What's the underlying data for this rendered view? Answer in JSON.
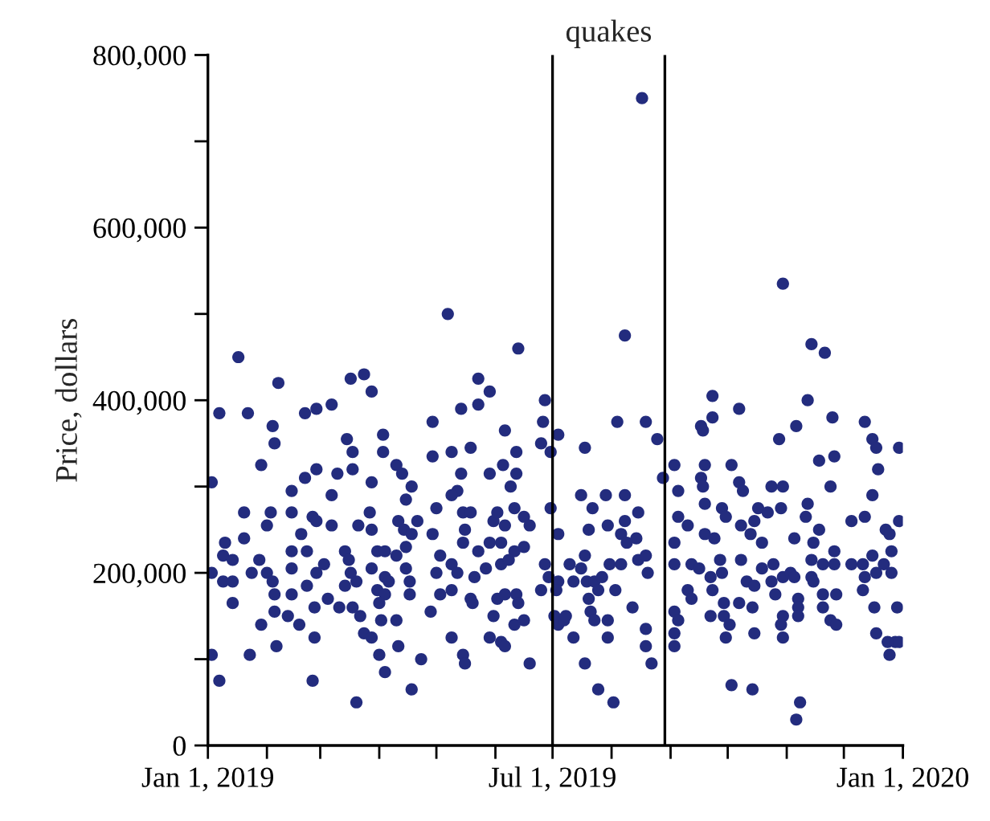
{
  "chart_data": {
    "type": "scatter",
    "ylabel": "Price, dollars",
    "xlim": [
      "2019-01-01",
      "2020-01-01"
    ],
    "xticks": [
      {
        "value": "2019-01-01",
        "label": "Jan 1, 2019"
      },
      {
        "value": "2019-02-01",
        "label": null
      },
      {
        "value": "2019-03-01",
        "label": null
      },
      {
        "value": "2019-04-01",
        "label": null
      },
      {
        "value": "2019-05-01",
        "label": null
      },
      {
        "value": "2019-06-01",
        "label": null
      },
      {
        "value": "2019-07-01",
        "label": "Jul 1, 2019"
      },
      {
        "value": "2019-08-01",
        "label": null
      },
      {
        "value": "2019-09-01",
        "label": null
      },
      {
        "value": "2019-10-01",
        "label": null
      },
      {
        "value": "2019-11-01",
        "label": null
      },
      {
        "value": "2019-12-01",
        "label": null
      },
      {
        "value": "2020-01-01",
        "label": "Jan 1, 2020"
      }
    ],
    "ylim": [
      0,
      800000
    ],
    "yticks": [
      {
        "value": 0,
        "label": "0"
      },
      {
        "value": 100000,
        "label": null
      },
      {
        "value": 200000,
        "label": "200,000"
      },
      {
        "value": 300000,
        "label": null
      },
      {
        "value": 400000,
        "label": "400,000"
      },
      {
        "value": 500000,
        "label": null
      },
      {
        "value": 600000,
        "label": "600,000"
      },
      {
        "value": 700000,
        "label": null
      },
      {
        "value": 800000,
        "label": "800,000"
      }
    ],
    "grid": false,
    "marker": "circle",
    "ref_lines": [
      {
        "axis": "x",
        "value": "2019-07-01",
        "color": "#000000"
      },
      {
        "axis": "x",
        "value": "2019-08-29",
        "color": "#000000"
      }
    ],
    "annotations": [
      "quakes"
    ],
    "series": [
      {
        "color": "#232c7e",
        "x": [
          "2019-01-17",
          "2019-02-07",
          "2019-01-07",
          "2019-01-22",
          "2019-02-21",
          "2019-02-27",
          "2019-03-07",
          "2019-03-17",
          "2019-03-24",
          "2019-03-28",
          "2019-01-03",
          "2019-02-04",
          "2019-02-05",
          "2019-01-29",
          "2019-01-20",
          "2019-01-10",
          "2019-01-09",
          "2019-01-14",
          "2019-01-03",
          "2019-01-09",
          "2019-01-14",
          "2019-01-14",
          "2019-01-20",
          "2019-01-24",
          "2019-02-01",
          "2019-02-03",
          "2019-01-28",
          "2019-02-01",
          "2019-02-04",
          "2019-02-05",
          "2019-02-05",
          "2019-01-29",
          "2019-02-06",
          "2019-01-23",
          "2019-01-03",
          "2019-01-07",
          "2019-02-14",
          "2019-02-14",
          "2019-02-14",
          "2019-02-14",
          "2019-02-14",
          "2019-02-12",
          "2019-02-21",
          "2019-02-27",
          "2019-02-19",
          "2019-02-22",
          "2019-02-25",
          "2019-02-27",
          "2019-03-07",
          "2019-03-07",
          "2019-03-03",
          "2019-02-27",
          "2019-02-22",
          "2019-03-05",
          "2019-02-26",
          "2019-02-18",
          "2019-02-26",
          "2019-02-25",
          "2019-03-10",
          "2019-03-18",
          "2019-03-15",
          "2019-03-18",
          "2019-03-28",
          "2019-03-27",
          "2019-03-21",
          "2019-03-28",
          "2019-03-14",
          "2019-03-16",
          "2019-03-17",
          "2019-03-20",
          "2019-03-14",
          "2019-03-11",
          "2019-03-18",
          "2019-03-22",
          "2019-03-24",
          "2019-03-28",
          "2019-04-01",
          "2019-04-04",
          "2019-03-20",
          "2019-04-03",
          "2019-04-03",
          "2019-04-10",
          "2019-04-13",
          "2019-04-18",
          "2019-04-15",
          "2019-04-11",
          "2019-04-14",
          "2019-04-18",
          "2019-04-21",
          "2019-03-31",
          "2019-04-04",
          "2019-04-10",
          "2019-04-15",
          "2019-03-28",
          "2019-04-04",
          "2019-04-06",
          "2019-03-31",
          "2019-04-04",
          "2019-04-01",
          "2019-04-02",
          "2019-04-10",
          "2019-04-17",
          "2019-04-17",
          "2019-04-15",
          "2019-04-11",
          "2019-04-23",
          "2019-04-18",
          "2019-04-29",
          "2019-04-29",
          "2019-05-01",
          "2019-04-29",
          "2019-05-01",
          "2019-04-28",
          "2019-05-07",
          "2019-06-13",
          "2019-05-23",
          "2019-05-29",
          "2019-05-14",
          "2019-05-23",
          "2019-06-27",
          "2019-06-26",
          "2019-06-06",
          "2019-05-09",
          "2019-05-19",
          "2019-06-12",
          "2019-06-25",
          "2019-06-30",
          "2019-07-04",
          "2019-05-14",
          "2019-05-29",
          "2019-06-05",
          "2019-06-12",
          "2019-06-09",
          "2019-05-12",
          "2019-05-09",
          "2019-05-15",
          "2019-05-19",
          "2019-05-16",
          "2019-05-31",
          "2019-06-02",
          "2019-06-11",
          "2019-06-16",
          "2019-06-19",
          "2019-06-06",
          "2019-06-30",
          "2019-07-04",
          "2019-05-15",
          "2019-05-23",
          "2019-05-29",
          "2019-06-04",
          "2019-06-11",
          "2019-06-16",
          "2019-05-03",
          "2019-05-09",
          "2019-05-12",
          "2019-05-21",
          "2019-05-27",
          "2019-06-04",
          "2019-06-08",
          "2019-06-27",
          "2019-06-29",
          "2019-07-04",
          "2019-06-25",
          "2019-05-03",
          "2019-05-09",
          "2019-05-19",
          "2019-05-20",
          "2019-06-02",
          "2019-06-06",
          "2019-06-12",
          "2019-06-13",
          "2019-05-31",
          "2019-06-16",
          "2019-07-02",
          "2019-05-09",
          "2019-05-29",
          "2019-06-04",
          "2019-06-06",
          "2019-06-11",
          "2019-05-15",
          "2019-05-16",
          "2019-06-19",
          "2019-07-04",
          "2019-07-07",
          "2019-07-03",
          "2019-08-08",
          "2019-08-04",
          "2019-08-19",
          "2019-08-25",
          "2019-07-18",
          "2019-08-28",
          "2019-07-16",
          "2019-07-29",
          "2019-07-22",
          "2019-08-08",
          "2019-08-15",
          "2019-08-08",
          "2019-07-20",
          "2019-07-30",
          "2019-08-06",
          "2019-08-14",
          "2019-07-10",
          "2019-07-18",
          "2019-07-16",
          "2019-08-09",
          "2019-08-15",
          "2019-08-19",
          "2019-08-20",
          "2019-07-12",
          "2019-07-19",
          "2019-07-23",
          "2019-07-27",
          "2019-07-31",
          "2019-08-06",
          "2019-08-03",
          "2019-07-25",
          "2019-07-20",
          "2019-08-12",
          "2019-07-21",
          "2019-07-23",
          "2019-07-30",
          "2019-07-08",
          "2019-07-12",
          "2019-07-30",
          "2019-08-19",
          "2019-08-19",
          "2019-07-18",
          "2019-08-22",
          "2019-07-25",
          "2019-08-02",
          "2019-08-17",
          "2019-10-30",
          "2019-11-14",
          "2019-11-21",
          "2019-09-23",
          "2019-09-23",
          "2019-09-17",
          "2019-09-18",
          "2019-10-07",
          "2019-11-12",
          "2019-11-25",
          "2019-11-06",
          "2019-10-28",
          "2019-12-12",
          "2019-12-16",
          "2019-12-18",
          "2019-12-30",
          "2019-12-19",
          "2019-11-18",
          "2019-11-26",
          "2019-11-24",
          "2019-12-16",
          "2019-09-03",
          "2019-09-19",
          "2019-10-03",
          "2019-09-17",
          "2019-09-18",
          "2019-10-07",
          "2019-10-09",
          "2019-10-24",
          "2019-10-30",
          "2019-09-05",
          "2019-09-05",
          "2019-09-10",
          "2019-09-19",
          "2019-09-28",
          "2019-09-30",
          "2019-10-17",
          "2019-10-22",
          "2019-10-29",
          "2019-11-12",
          "2019-11-11",
          "2019-10-08",
          "2019-10-13",
          "2019-10-15",
          "2019-12-05",
          "2019-12-12",
          "2019-11-18",
          "2019-12-30",
          "2019-12-23",
          "2019-12-25",
          "2019-09-03",
          "2019-09-19",
          "2019-09-24",
          "2019-10-19",
          "2019-11-05",
          "2019-11-15",
          "2019-12-26",
          "2019-11-26",
          "2019-10-08",
          "2019-11-14",
          "2019-11-20",
          "2019-11-26",
          "2019-12-05",
          "2019-12-11",
          "2019-12-16",
          "2019-12-22",
          "2019-09-03",
          "2019-09-12",
          "2019-09-16",
          "2019-09-27",
          "2019-09-28",
          "2019-09-22",
          "2019-10-19",
          "2019-10-25",
          "2019-10-30",
          "2019-11-03",
          "2019-11-05",
          "2019-11-14",
          "2019-12-12",
          "2019-12-18",
          "2019-12-26",
          "2019-10-11",
          "2019-10-15",
          "2019-10-24",
          "2019-09-10",
          "2019-09-12",
          "2019-09-23",
          "2019-11-15",
          "2019-10-26",
          "2019-11-07",
          "2019-11-20",
          "2019-11-27",
          "2019-12-11",
          "2019-09-29",
          "2019-10-07",
          "2019-10-14",
          "2019-11-07",
          "2019-11-20",
          "2019-12-17",
          "2019-12-29",
          "2019-09-03",
          "2019-09-05",
          "2019-09-03",
          "2019-09-22",
          "2019-09-29",
          "2019-10-02",
          "2019-10-30",
          "2019-11-07",
          "2019-11-24",
          "2019-11-27",
          "2019-12-18",
          "2019-10-15",
          "2019-10-29",
          "2019-09-30",
          "2019-10-30",
          "2019-09-03",
          "2019-12-24",
          "2019-12-28",
          "2019-12-30",
          "2019-12-25",
          "2019-10-03",
          "2019-10-14",
          "2019-11-08",
          "2019-11-06"
        ],
        "values": [
          450000,
          420000,
          385000,
          385000,
          385000,
          390000,
          395000,
          425000,
          430000,
          410000,
          305000,
          370000,
          350000,
          325000,
          270000,
          235000,
          220000,
          215000,
          200000,
          190000,
          190000,
          165000,
          240000,
          200000,
          255000,
          270000,
          215000,
          200000,
          190000,
          175000,
          155000,
          140000,
          115000,
          105000,
          105000,
          75000,
          295000,
          270000,
          225000,
          205000,
          175000,
          150000,
          310000,
          320000,
          245000,
          225000,
          265000,
          260000,
          290000,
          255000,
          210000,
          200000,
          185000,
          170000,
          160000,
          140000,
          125000,
          75000,
          315000,
          320000,
          355000,
          340000,
          305000,
          270000,
          255000,
          250000,
          225000,
          215000,
          200000,
          190000,
          185000,
          160000,
          160000,
          150000,
          130000,
          125000,
          105000,
          85000,
          50000,
          360000,
          340000,
          325000,
          315000,
          300000,
          285000,
          260000,
          250000,
          245000,
          260000,
          225000,
          225000,
          220000,
          230000,
          205000,
          195000,
          190000,
          180000,
          175000,
          165000,
          145000,
          145000,
          190000,
          175000,
          205000,
          115000,
          100000,
          65000,
          375000,
          335000,
          275000,
          245000,
          200000,
          155000,
          500000,
          460000,
          425000,
          410000,
          390000,
          395000,
          400000,
          375000,
          365000,
          340000,
          345000,
          340000,
          350000,
          340000,
          360000,
          315000,
          315000,
          325000,
          315000,
          300000,
          295000,
          290000,
          270000,
          270000,
          250000,
          260000,
          270000,
          275000,
          265000,
          255000,
          255000,
          275000,
          245000,
          235000,
          225000,
          235000,
          235000,
          225000,
          230000,
          220000,
          210000,
          200000,
          195000,
          205000,
          210000,
          215000,
          210000,
          195000,
          190000,
          180000,
          175000,
          180000,
          170000,
          165000,
          170000,
          175000,
          175000,
          165000,
          150000,
          145000,
          150000,
          125000,
          125000,
          120000,
          115000,
          140000,
          105000,
          95000,
          95000,
          140000,
          145000,
          180000,
          475000,
          375000,
          375000,
          355000,
          345000,
          310000,
          290000,
          290000,
          275000,
          290000,
          270000,
          260000,
          250000,
          255000,
          245000,
          240000,
          210000,
          220000,
          205000,
          235000,
          215000,
          220000,
          200000,
          190000,
          190000,
          190000,
          195000,
          210000,
          210000,
          180000,
          180000,
          170000,
          160000,
          155000,
          145000,
          145000,
          150000,
          125000,
          125000,
          135000,
          115000,
          95000,
          95000,
          65000,
          50000,
          750000,
          535000,
          465000,
          455000,
          405000,
          380000,
          370000,
          365000,
          390000,
          400000,
          380000,
          370000,
          355000,
          375000,
          355000,
          345000,
          345000,
          320000,
          330000,
          335000,
          300000,
          290000,
          325000,
          325000,
          325000,
          310000,
          300000,
          305000,
          295000,
          300000,
          300000,
          295000,
          265000,
          255000,
          280000,
          275000,
          265000,
          275000,
          270000,
          275000,
          280000,
          265000,
          255000,
          245000,
          260000,
          260000,
          265000,
          250000,
          260000,
          250000,
          245000,
          235000,
          245000,
          240000,
          235000,
          240000,
          235000,
          225000,
          225000,
          215000,
          215000,
          210000,
          210000,
          210000,
          210000,
          220000,
          210000,
          210000,
          210000,
          205000,
          215000,
          200000,
          195000,
          205000,
          210000,
          195000,
          200000,
          195000,
          195000,
          195000,
          200000,
          200000,
          190000,
          185000,
          190000,
          180000,
          170000,
          180000,
          190000,
          175000,
          170000,
          175000,
          175000,
          180000,
          165000,
          165000,
          160000,
          160000,
          160000,
          160000,
          160000,
          155000,
          145000,
          130000,
          150000,
          150000,
          140000,
          150000,
          150000,
          145000,
          140000,
          130000,
          130000,
          140000,
          125000,
          125000,
          115000,
          120000,
          120000,
          120000,
          105000,
          70000,
          65000,
          50000,
          30000
        ]
      }
    ]
  }
}
